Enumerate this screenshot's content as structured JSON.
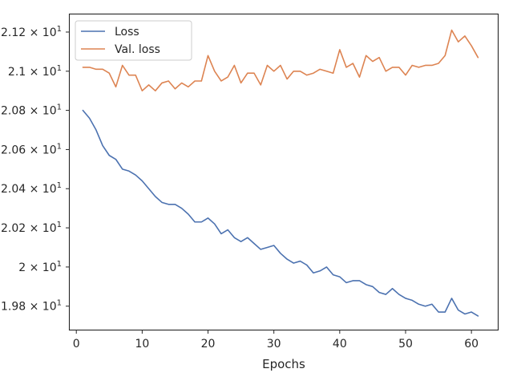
{
  "chart_data": {
    "type": "line",
    "title": "",
    "xlabel": "Epochs",
    "ylabel": "",
    "xlim": [
      -1,
      64
    ],
    "ylim": [
      19.68,
      21.29
    ],
    "grid": false,
    "legend_position": "top-left",
    "x_ticks": [
      {
        "value": 0,
        "label": "0"
      },
      {
        "value": 10,
        "label": "10"
      },
      {
        "value": 20,
        "label": "20"
      },
      {
        "value": 30,
        "label": "30"
      },
      {
        "value": 40,
        "label": "40"
      },
      {
        "value": 50,
        "label": "50"
      },
      {
        "value": 60,
        "label": "60"
      }
    ],
    "y_ticks": [
      {
        "value": 19.8,
        "mant": "1.98",
        "label": "1.98 × 10¹"
      },
      {
        "value": 20.0,
        "mant": "2",
        "label": "2 × 10¹"
      },
      {
        "value": 20.2,
        "mant": "2.02",
        "label": "2.02 × 10¹"
      },
      {
        "value": 20.4,
        "mant": "2.04",
        "label": "2.04 × 10¹"
      },
      {
        "value": 20.6,
        "mant": "2.06",
        "label": "2.06 × 10¹"
      },
      {
        "value": 20.8,
        "mant": "2.08",
        "label": "2.08 × 10¹"
      },
      {
        "value": 21.0,
        "mant": "2.1",
        "label": "2.1 × 10¹"
      },
      {
        "value": 21.2,
        "mant": "2.12",
        "label": "2.12 × 10¹"
      }
    ],
    "x": [
      1,
      2,
      3,
      4,
      5,
      6,
      7,
      8,
      9,
      10,
      11,
      12,
      13,
      14,
      15,
      16,
      17,
      18,
      19,
      20,
      21,
      22,
      23,
      24,
      25,
      26,
      27,
      28,
      29,
      30,
      31,
      32,
      33,
      34,
      35,
      36,
      37,
      38,
      39,
      40,
      41,
      42,
      43,
      44,
      45,
      46,
      47,
      48,
      49,
      50,
      51,
      52,
      53,
      54,
      55,
      56,
      57,
      58,
      59,
      60,
      61
    ],
    "series": [
      {
        "name": "Loss",
        "color": "#4c72b0",
        "values": [
          20.8,
          20.76,
          20.7,
          20.62,
          20.57,
          20.55,
          20.5,
          20.49,
          20.47,
          20.44,
          20.4,
          20.36,
          20.33,
          20.32,
          20.32,
          20.3,
          20.27,
          20.23,
          20.23,
          20.25,
          20.22,
          20.17,
          20.19,
          20.15,
          20.13,
          20.15,
          20.12,
          20.09,
          20.1,
          20.11,
          20.07,
          20.04,
          20.02,
          20.03,
          20.01,
          19.97,
          19.98,
          20.0,
          19.96,
          19.95,
          19.92,
          19.93,
          19.93,
          19.91,
          19.9,
          19.87,
          19.86,
          19.89,
          19.86,
          19.84,
          19.83,
          19.81,
          19.8,
          19.81,
          19.77,
          19.77,
          19.84,
          19.78,
          19.76,
          19.77,
          19.75
        ]
      },
      {
        "name": "Val. loss",
        "color": "#dd8452",
        "values": [
          21.02,
          21.02,
          21.01,
          21.01,
          20.99,
          20.92,
          21.03,
          20.98,
          20.98,
          20.9,
          20.93,
          20.9,
          20.94,
          20.95,
          20.91,
          20.94,
          20.92,
          20.95,
          20.95,
          21.08,
          21.0,
          20.95,
          20.97,
          21.03,
          20.94,
          20.99,
          20.99,
          20.93,
          21.03,
          21.0,
          21.03,
          20.96,
          21.0,
          21.0,
          20.98,
          20.99,
          21.01,
          21.0,
          20.99,
          21.11,
          21.02,
          21.04,
          20.97,
          21.08,
          21.05,
          21.07,
          21.0,
          21.02,
          21.02,
          20.98,
          21.03,
          21.02,
          21.03,
          21.03,
          21.04,
          21.08,
          21.21,
          21.15,
          21.18,
          21.13,
          21.07
        ]
      }
    ]
  }
}
